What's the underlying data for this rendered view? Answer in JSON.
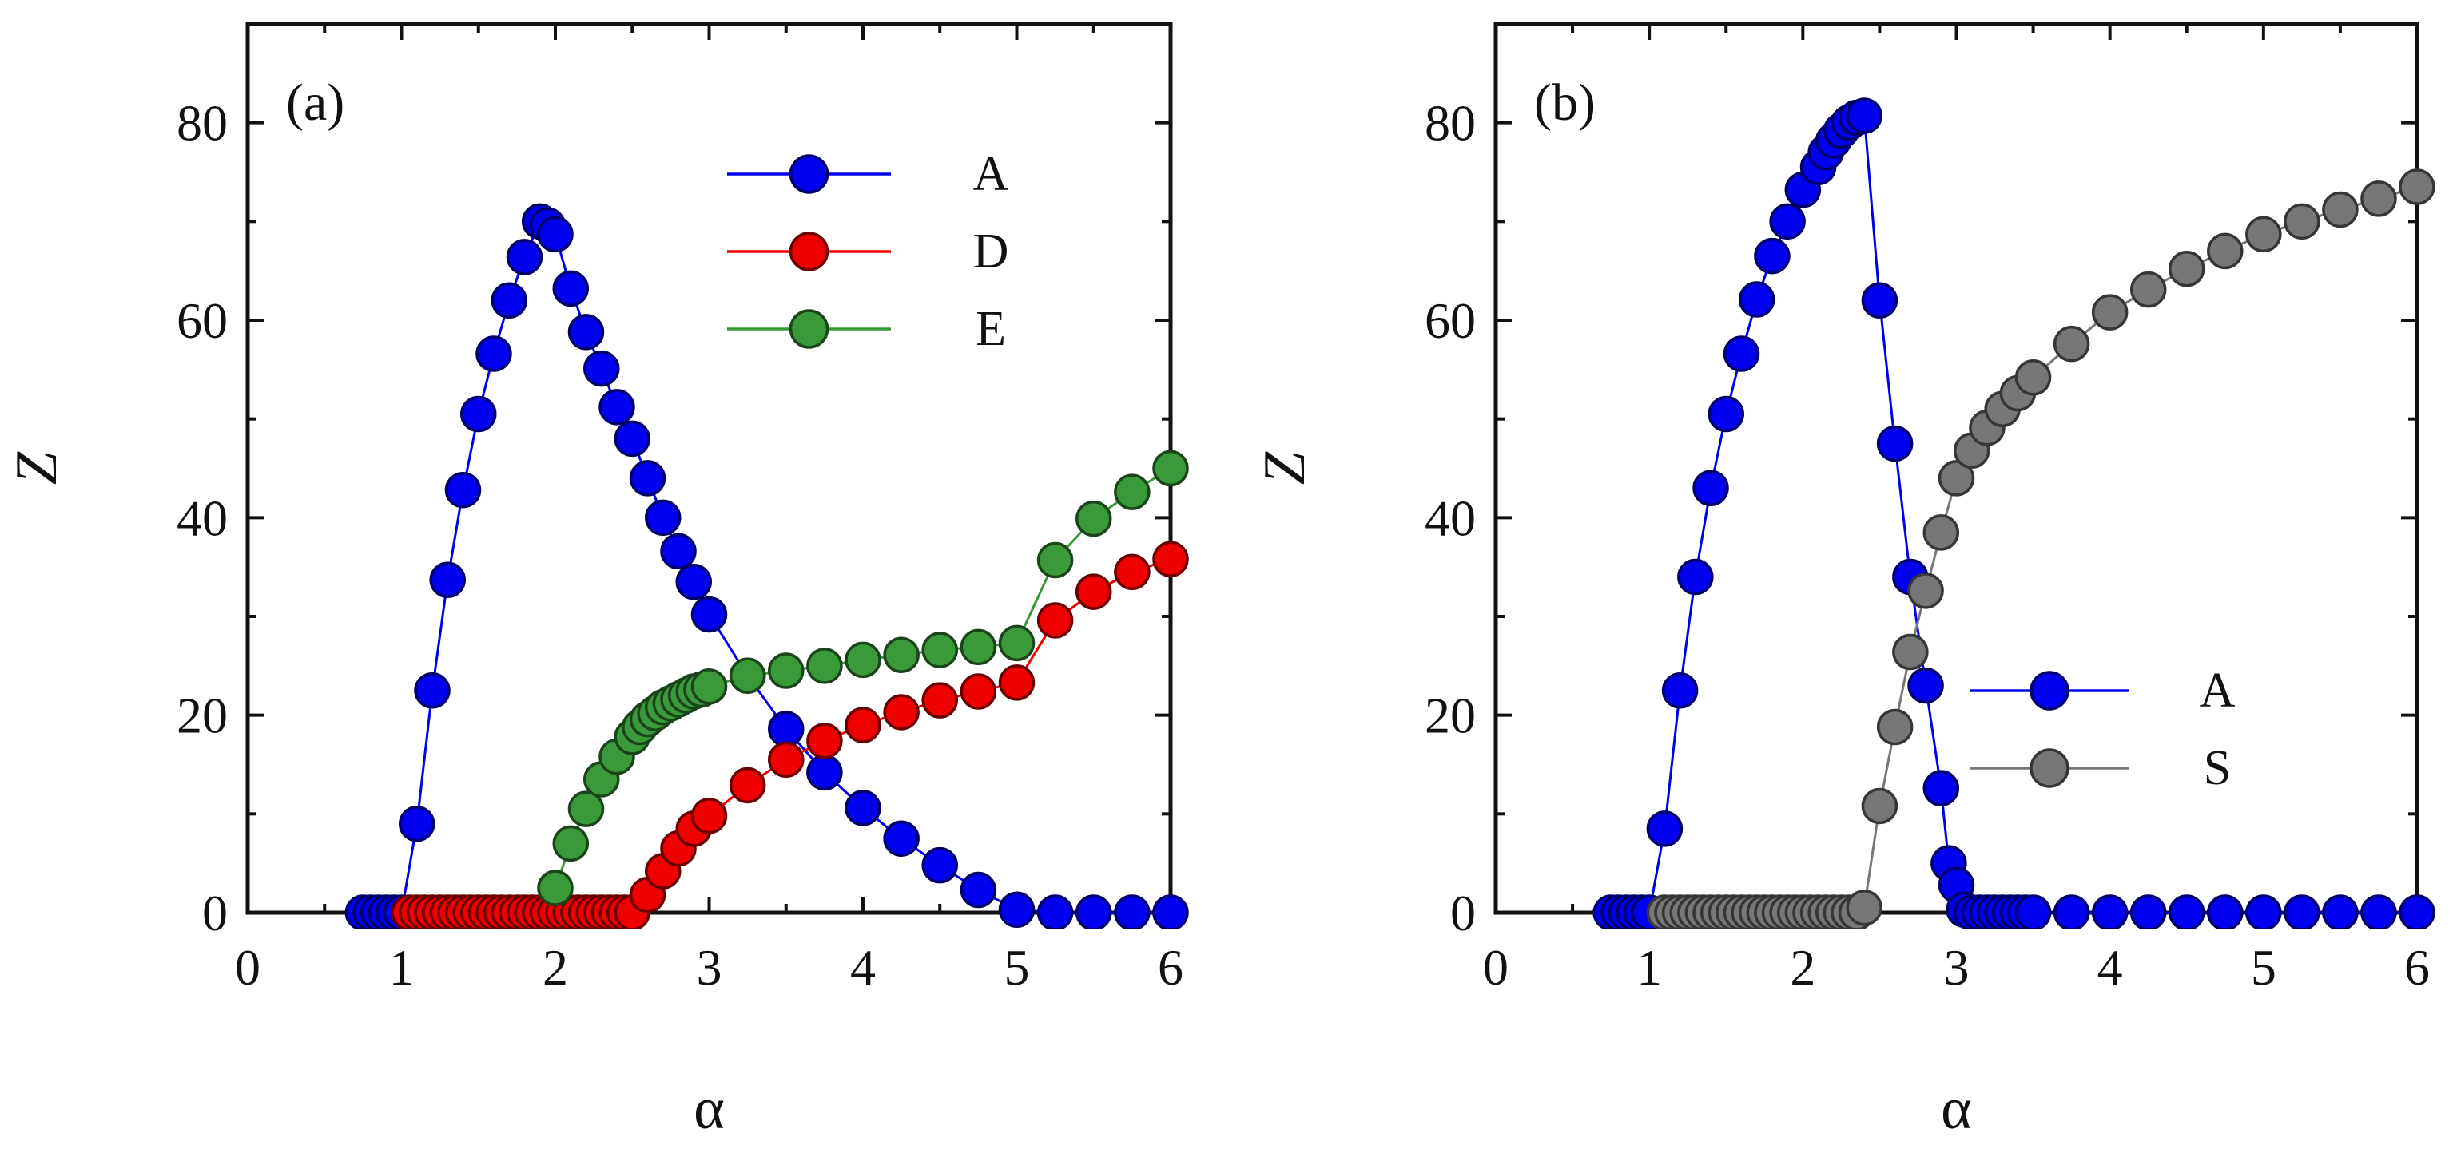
{
  "chart_data": [
    {
      "type": "line",
      "panel_label": "(a)",
      "xlabel": "α",
      "ylabel": "Z",
      "xlim": [
        0,
        6
      ],
      "ylim": [
        0,
        90
      ],
      "x_ticks": [
        0,
        1,
        2,
        3,
        4,
        5,
        6
      ],
      "y_ticks": [
        0,
        20,
        40,
        60,
        80
      ],
      "legend_position": "top-right",
      "series": [
        {
          "name": "A",
          "color": "#0000ee",
          "x": [
            0.75,
            0.8,
            0.85,
            0.9,
            0.95,
            1.0,
            1.1,
            1.2,
            1.3,
            1.4,
            1.5,
            1.6,
            1.7,
            1.8,
            1.9,
            1.95,
            2.0,
            2.1,
            2.2,
            2.3,
            2.4,
            2.5,
            2.6,
            2.7,
            2.8,
            2.9,
            3.0,
            3.25,
            3.5,
            3.75,
            4.0,
            4.25,
            4.5,
            4.75,
            5.0,
            5.25,
            5.5,
            5.75,
            6.0
          ],
          "y": [
            0,
            0,
            0,
            0,
            0,
            0,
            9,
            22.5,
            33.7,
            42.8,
            50.5,
            56.6,
            62,
            66.4,
            70,
            69.6,
            68.7,
            63.2,
            58.8,
            55.1,
            51.2,
            48,
            44,
            40,
            36.6,
            33.5,
            30.2,
            24,
            18.6,
            14.2,
            10.6,
            7.5,
            4.8,
            2.3,
            0.3,
            0,
            0,
            0,
            0
          ]
        },
        {
          "name": "D",
          "color": "#ee0000",
          "x": [
            1.05,
            1.1,
            1.15,
            1.2,
            1.25,
            1.3,
            1.35,
            1.4,
            1.45,
            1.5,
            1.55,
            1.6,
            1.65,
            1.7,
            1.75,
            1.8,
            1.85,
            1.9,
            1.95,
            2.0,
            2.05,
            2.1,
            2.15,
            2.2,
            2.25,
            2.3,
            2.35,
            2.4,
            2.45,
            2.5,
            2.6,
            2.7,
            2.8,
            2.9,
            3.0,
            3.25,
            3.5,
            3.75,
            4.0,
            4.25,
            4.5,
            4.75,
            5.0,
            5.25,
            5.5,
            5.75,
            6.0
          ],
          "y": [
            0,
            0,
            0,
            0,
            0,
            0,
            0,
            0,
            0,
            0,
            0,
            0,
            0,
            0,
            0,
            0,
            0,
            0,
            0,
            0,
            0,
            0,
            0,
            0,
            0,
            0,
            0,
            0,
            0,
            0,
            1.8,
            4.2,
            6.5,
            8.5,
            9.8,
            12.9,
            15.5,
            17.4,
            19,
            20.3,
            21.5,
            22.4,
            23.3,
            29.6,
            32.5,
            34.5,
            35.8
          ]
        },
        {
          "name": "E",
          "color": "#3a9a3a",
          "x": [
            2.0,
            2.1,
            2.2,
            2.3,
            2.4,
            2.5,
            2.55,
            2.6,
            2.65,
            2.7,
            2.75,
            2.8,
            2.85,
            2.9,
            2.95,
            3.0,
            3.25,
            3.5,
            3.75,
            4.0,
            4.25,
            4.5,
            4.75,
            5.0,
            5.25,
            5.5,
            5.75,
            6.0
          ],
          "y": [
            2.5,
            7,
            10.5,
            13.5,
            15.8,
            17.8,
            18.8,
            19.6,
            20.2,
            20.8,
            21.2,
            21.6,
            22,
            22.4,
            22.6,
            22.9,
            24,
            24.5,
            25,
            25.6,
            26.1,
            26.6,
            26.9,
            27.3,
            35.7,
            39.9,
            42.6,
            45
          ]
        }
      ]
    },
    {
      "type": "line",
      "panel_label": "(b)",
      "xlabel": "α",
      "ylabel": "Z",
      "xlim": [
        0,
        6
      ],
      "ylim": [
        0,
        90
      ],
      "x_ticks": [
        0,
        1,
        2,
        3,
        4,
        5,
        6
      ],
      "y_ticks": [
        0,
        20,
        40,
        60,
        80
      ],
      "legend_position": "center-right",
      "series": [
        {
          "name": "A",
          "color": "#0000ee",
          "x": [
            0.75,
            0.8,
            0.85,
            0.9,
            0.95,
            1.0,
            1.1,
            1.2,
            1.3,
            1.4,
            1.5,
            1.6,
            1.7,
            1.8,
            1.9,
            2.0,
            2.1,
            2.15,
            2.2,
            2.25,
            2.3,
            2.35,
            2.4,
            2.5,
            2.6,
            2.7,
            2.8,
            2.9,
            2.95,
            3.0,
            3.05,
            3.1,
            3.15,
            3.2,
            3.25,
            3.3,
            3.35,
            3.4,
            3.45,
            3.5,
            3.75,
            4.0,
            4.25,
            4.5,
            4.75,
            5.0,
            5.25,
            5.5,
            5.75,
            6.0
          ],
          "y": [
            0,
            0,
            0,
            0,
            0,
            0,
            8.5,
            22.5,
            34,
            43,
            50.5,
            56.6,
            62.1,
            66.5,
            70,
            73.2,
            75.5,
            77,
            78.2,
            79.2,
            80,
            80.5,
            80.7,
            62,
            47.5,
            34,
            23,
            12.6,
            5,
            2.8,
            0.3,
            0,
            0,
            0,
            0,
            0,
            0,
            0,
            0,
            0,
            0,
            0,
            0,
            0,
            0,
            0,
            0,
            0,
            0,
            0
          ]
        },
        {
          "name": "S",
          "color": "#777777",
          "x": [
            1.1,
            1.15,
            1.2,
            1.25,
            1.3,
            1.35,
            1.4,
            1.45,
            1.5,
            1.55,
            1.6,
            1.65,
            1.7,
            1.75,
            1.8,
            1.85,
            1.9,
            1.95,
            2.0,
            2.05,
            2.1,
            2.15,
            2.2,
            2.25,
            2.3,
            2.35,
            2.4,
            2.5,
            2.6,
            2.7,
            2.8,
            2.9,
            3.0,
            3.1,
            3.2,
            3.3,
            3.4,
            3.5,
            3.75,
            4.0,
            4.25,
            4.5,
            4.75,
            5.0,
            5.25,
            5.5,
            5.75,
            6.0
          ],
          "y": [
            0,
            0,
            0,
            0,
            0,
            0,
            0,
            0,
            0,
            0,
            0,
            0,
            0,
            0,
            0,
            0,
            0,
            0,
            0,
            0,
            0,
            0,
            0,
            0,
            0,
            0,
            0.5,
            10.8,
            18.8,
            26.4,
            32.6,
            38.5,
            44,
            46.8,
            49.1,
            51,
            52.6,
            54.2,
            57.6,
            60.8,
            63.1,
            65.2,
            67,
            68.7,
            70,
            71.2,
            72.3,
            73.5
          ]
        }
      ]
    }
  ]
}
